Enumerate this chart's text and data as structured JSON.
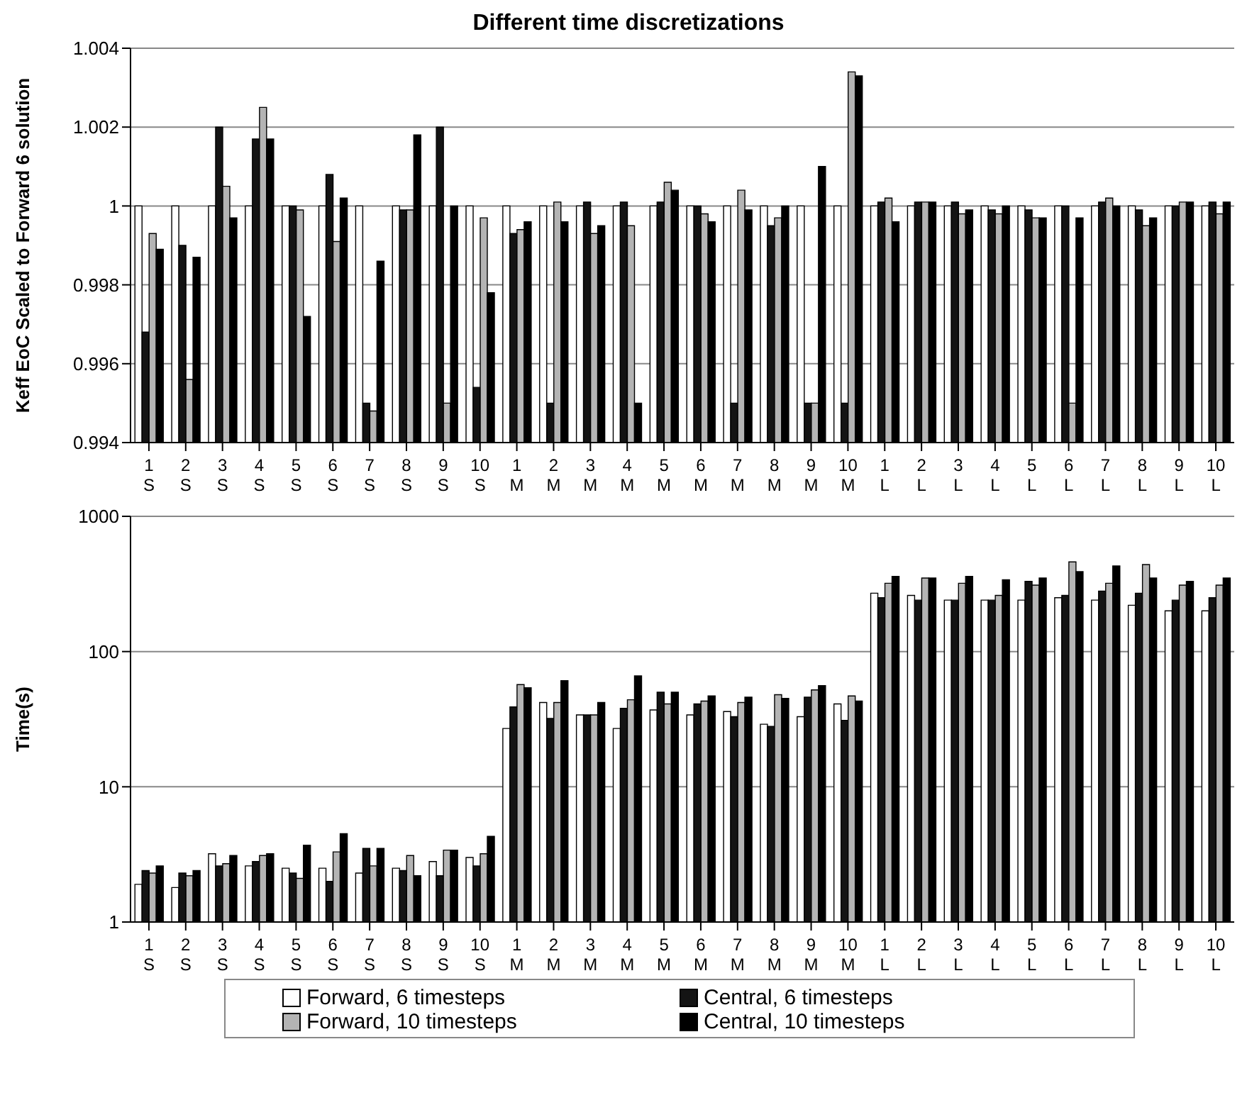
{
  "chart_data": [
    {
      "type": "bar",
      "title": "Different time discretizations",
      "ylabel": "Keff EoC Scaled to Forward 6 solution",
      "categories": [
        "1 S",
        "2 S",
        "3 S",
        "4 S",
        "5 S",
        "6 S",
        "7 S",
        "8 S",
        "9 S",
        "10 S",
        "1 M",
        "2 M",
        "3 M",
        "4 M",
        "5 M",
        "6 M",
        "7 M",
        "8 M",
        "9 M",
        "10 M",
        "1 L",
        "2 L",
        "3 L",
        "4 L",
        "5 L",
        "6 L",
        "7 L",
        "8 L",
        "9 L",
        "10 L"
      ],
      "series": [
        {
          "color": "#ffffff",
          "values": [
            1,
            1,
            1,
            1,
            1,
            1,
            1,
            1,
            1,
            1,
            1,
            1,
            1,
            1,
            1,
            1,
            1,
            1,
            1,
            1,
            1,
            1,
            1,
            1,
            1,
            1,
            1,
            1,
            1,
            1
          ]
        },
        {
          "color": "#141414",
          "values": [
            0.9968,
            0.999,
            1.002,
            1.0017,
            1.0,
            1.0008,
            0.995,
            0.9999,
            1.002,
            0.9954,
            0.9993,
            0.995,
            1.0001,
            1.0001,
            1.0001,
            1.0,
            0.995,
            0.9995,
            0.995,
            0.995,
            1.0001,
            1.0001,
            1.0001,
            0.9999,
            0.9999,
            1.0,
            1.0001,
            0.9999,
            1.0,
            1.0001
          ]
        },
        {
          "color": "#b4b4b4",
          "values": [
            0.9993,
            0.9956,
            1.0005,
            1.0025,
            0.9999,
            0.9991,
            0.9948,
            0.9999,
            0.995,
            0.9997,
            0.9994,
            1.0001,
            0.9993,
            0.9995,
            1.0006,
            0.9998,
            1.0004,
            0.9997,
            0.995,
            1.0034,
            1.0002,
            1.0001,
            0.9998,
            0.9998,
            0.9997,
            0.995,
            1.0002,
            0.9995,
            1.0001,
            0.9998
          ]
        },
        {
          "color": "#000000",
          "values": [
            0.9989,
            0.9987,
            0.9997,
            1.0017,
            0.9972,
            1.0002,
            0.9986,
            1.0018,
            1.0,
            0.9978,
            0.9996,
            0.9996,
            0.9995,
            0.995,
            1.0004,
            0.9996,
            0.9999,
            1.0,
            1.001,
            1.0033,
            0.9996,
            1.0001,
            0.9999,
            1.0,
            0.9997,
            0.9997,
            1.0,
            0.9997,
            1.0001,
            1.0001
          ]
        }
      ],
      "ylim": [
        0.994,
        1.004
      ],
      "yticks": [
        0.994,
        0.996,
        0.998,
        1,
        1.002,
        1.004
      ],
      "grid": "y"
    },
    {
      "type": "bar",
      "ylabel": "Time(s)",
      "log": "y",
      "categories": [
        "1 S",
        "2 S",
        "3 S",
        "4 S",
        "5 S",
        "6 S",
        "7 S",
        "8 S",
        "9 S",
        "10 S",
        "1 M",
        "2 M",
        "3 M",
        "4 M",
        "5 M",
        "6 M",
        "7 M",
        "8 M",
        "9 M",
        "10 M",
        "1 L",
        "2 L",
        "3 L",
        "4 L",
        "5 L",
        "6 L",
        "7 L",
        "8 L",
        "9 L",
        "10 L"
      ],
      "series": [
        {
          "name": "Forward, 6 timesteps",
          "color": "#ffffff",
          "values": [
            1.9,
            1.8,
            3.2,
            2.6,
            2.5,
            2.5,
            2.3,
            2.5,
            2.8,
            3.0,
            27,
            42,
            34,
            27,
            37,
            34,
            36,
            29,
            33,
            41,
            270,
            260,
            240,
            240,
            240,
            250,
            240,
            220,
            200,
            200
          ]
        },
        {
          "name": "Central, 6 timesteps",
          "color": "#141414",
          "values": [
            2.4,
            2.3,
            2.6,
            2.8,
            2.3,
            2.0,
            3.5,
            2.4,
            2.2,
            2.6,
            39,
            32,
            34,
            38,
            50,
            41,
            33,
            28,
            46,
            31,
            250,
            240,
            240,
            240,
            330,
            260,
            280,
            270,
            240,
            250
          ]
        },
        {
          "name": "Forward, 10 timesteps",
          "color": "#b4b4b4",
          "values": [
            2.3,
            2.2,
            2.7,
            3.1,
            2.1,
            3.3,
            2.6,
            3.1,
            3.4,
            3.2,
            57,
            42,
            34,
            44,
            41,
            43,
            42,
            48,
            52,
            47,
            320,
            350,
            320,
            260,
            310,
            460,
            320,
            440,
            310,
            310
          ]
        },
        {
          "name": "Central, 10 timesteps",
          "color": "#000000",
          "values": [
            2.6,
            2.4,
            3.1,
            3.2,
            3.7,
            4.5,
            3.5,
            2.2,
            3.4,
            4.3,
            54,
            61,
            42,
            66,
            50,
            47,
            46,
            45,
            56,
            43,
            360,
            350,
            360,
            340,
            350,
            390,
            430,
            350,
            330,
            350
          ]
        }
      ],
      "ylim": [
        1,
        1000
      ],
      "yticks": [
        1,
        10,
        100,
        1000
      ],
      "grid": "y",
      "legend": "bottom"
    }
  ]
}
